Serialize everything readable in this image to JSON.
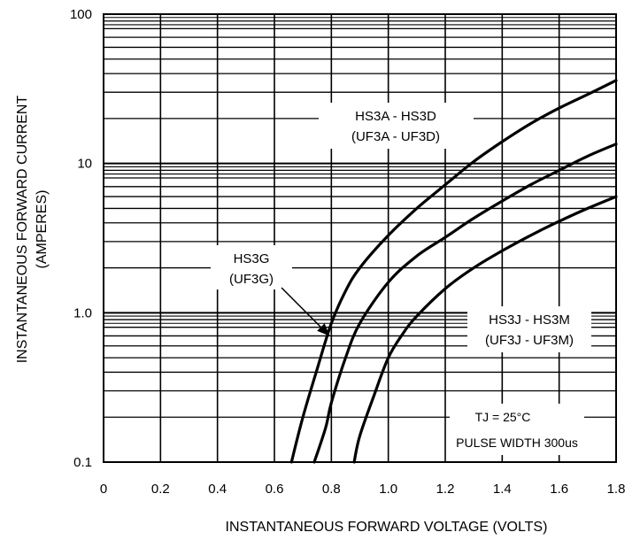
{
  "chart_data": {
    "type": "line",
    "title": "",
    "xlabel": "INSTANTANEOUS FORWARD VOLTAGE (VOLTS)",
    "ylabel": "INSTANTANEOUS FORWARD CURRENT",
    "ylabel_unit": "(AMPERES)",
    "xlim": [
      0,
      1.8
    ],
    "ylim": [
      0.1,
      100
    ],
    "yscale": "log",
    "grid": true,
    "x_ticks": [
      "0",
      "0.2",
      "0.4",
      "0.6",
      "0.8",
      "1.0",
      "1.2",
      "1.4",
      "1.6",
      "1.8"
    ],
    "y_ticks": [
      {
        "value": 0.1,
        "label": "0.1"
      },
      {
        "value": 1,
        "label": "1.0"
      },
      {
        "value": 10,
        "label": "10"
      },
      {
        "value": 100,
        "label": "100"
      }
    ],
    "series": [
      {
        "name": "HS3A - HS3D (UF3A - UF3D)",
        "x": [
          0.66,
          0.7,
          0.75,
          0.8,
          0.85,
          0.9,
          1.0,
          1.1,
          1.2,
          1.3,
          1.4,
          1.5,
          1.6,
          1.7,
          1.8
        ],
        "y": [
          0.1,
          0.2,
          0.42,
          0.85,
          1.4,
          2.0,
          3.3,
          5.0,
          7.2,
          10.3,
          14.0,
          18.5,
          23.5,
          29.0,
          36.0
        ]
      },
      {
        "name": "HS3G (UF3G)",
        "x": [
          0.74,
          0.78,
          0.8,
          0.85,
          0.9,
          1.0,
          1.1,
          1.2,
          1.3,
          1.4,
          1.5,
          1.6,
          1.7,
          1.8
        ],
        "y": [
          0.1,
          0.17,
          0.25,
          0.5,
          0.85,
          1.6,
          2.4,
          3.2,
          4.3,
          5.6,
          7.2,
          9.0,
          11.2,
          13.5
        ]
      },
      {
        "name": "HS3J - HS3M (UF3J - UF3M)",
        "x": [
          0.88,
          0.9,
          0.95,
          1.0,
          1.05,
          1.1,
          1.2,
          1.3,
          1.4,
          1.5,
          1.6,
          1.7,
          1.8
        ],
        "y": [
          0.1,
          0.15,
          0.28,
          0.5,
          0.72,
          0.95,
          1.45,
          2.0,
          2.6,
          3.3,
          4.1,
          5.0,
          6.0
        ]
      }
    ],
    "annotations": {
      "series_a_line1": "HS3A - HS3D",
      "series_a_line2": "(UF3A - UF3D)",
      "series_g_line1": "HS3G",
      "series_g_line2": "(UF3G)",
      "series_j_line1": "HS3J - HS3M",
      "series_j_line2": "(UF3J - UF3M)",
      "temp": "TJ = 25°C",
      "pulse": "PULSE WIDTH 300us"
    }
  }
}
